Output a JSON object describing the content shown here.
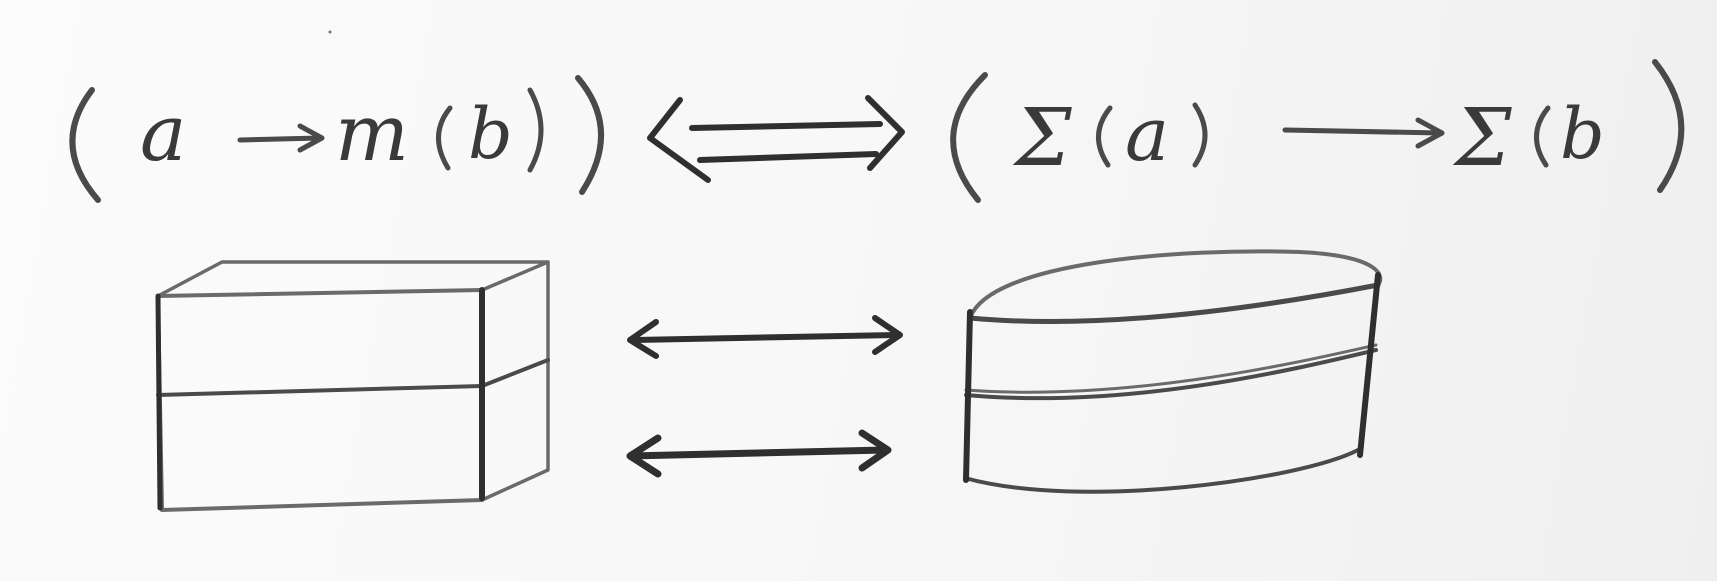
{
  "formula": {
    "left": {
      "input": "a",
      "monad": "m",
      "output": "b"
    },
    "equivalence_symbol": "⟺",
    "right": {
      "operator": "Σ",
      "input": "a",
      "output": "b"
    }
  },
  "diagram": {
    "left_shape": "stacked-box-icon",
    "right_shape": "stacked-cylinder-icon",
    "connectors": [
      "double-headed-arrow",
      "double-headed-arrow"
    ]
  },
  "colors": {
    "ink": "#3a3a3a",
    "paper": "#f7f7f7"
  }
}
